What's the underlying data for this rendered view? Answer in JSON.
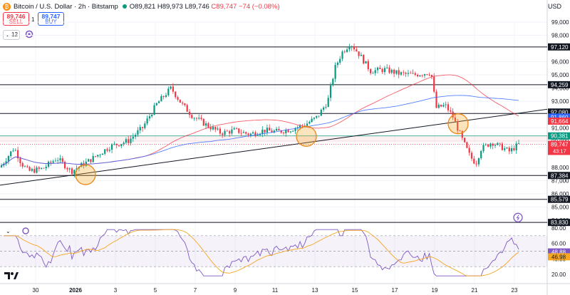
{
  "header": {
    "symbol": "Bitcoin / U.S. Dollar · 2h · Bitstamp",
    "open": "O89,821",
    "high": "H89,973",
    "low": "L89,746",
    "close": "C89,747",
    "change": "−74 (−0.08%)"
  },
  "trade": {
    "sell_price": "89,746",
    "sell_label": "SELL",
    "spread": "1",
    "buy_price": "89,747",
    "buy_label": "BUY"
  },
  "indicator_count": "12",
  "currency": "USD",
  "chart_data": {
    "type": "candlestick",
    "price_axis_ticks": [
      99000,
      98000,
      96000,
      95000,
      94000,
      93000,
      91000,
      90000,
      88000,
      87000,
      86000,
      85000,
      84000
    ],
    "price_labels": [
      {
        "value": 97120,
        "text": "97,120",
        "style": "level"
      },
      {
        "value": 94259,
        "text": "94,259",
        "style": "level"
      },
      {
        "value": 92080,
        "text": "92,080",
        "style": "level"
      },
      {
        "value": 91860,
        "text": "91,860",
        "style": "blue"
      },
      {
        "value": 91664,
        "text": "91,664",
        "style": "red"
      },
      {
        "value": 90381,
        "text": "90,381",
        "style": "green"
      },
      {
        "value": 89747,
        "text": "89,747",
        "style": "price"
      },
      {
        "value": 87384,
        "text": "87,384",
        "style": "level"
      },
      {
        "value": 85579,
        "text": "85,579",
        "style": "level"
      },
      {
        "value": 83830,
        "text": "83,830",
        "style": "level"
      }
    ],
    "countdown": "43:17",
    "horizontal_levels": [
      97120,
      94259,
      92080,
      87384,
      85579,
      83830
    ],
    "x_axis_labels": [
      "30",
      "2026",
      "3",
      "5",
      "7",
      "9",
      "11",
      "13",
      "15",
      "17",
      "19",
      "21",
      "23"
    ],
    "key_closes": [
      {
        "label": "30",
        "close": 88000
      },
      {
        "label": "2026",
        "close": 87700
      },
      {
        "label": "3",
        "close": 89500
      },
      {
        "label": "5",
        "close": 93800
      },
      {
        "label": "7",
        "close": 90900
      },
      {
        "label": "9",
        "close": 90600
      },
      {
        "label": "11",
        "close": 90700
      },
      {
        "label": "13",
        "close": 91500
      },
      {
        "label": "15",
        "close": 96800
      },
      {
        "label": "17",
        "close": 95200
      },
      {
        "label": "19",
        "close": 92900
      },
      {
        "label": "21",
        "close": 88300
      },
      {
        "label": "23",
        "close": 89747
      }
    ],
    "rsi": {
      "ticks": [
        80.0,
        60.0,
        40.0,
        20.0
      ],
      "value_labels": [
        "48.88",
        "46.98"
      ],
      "upper_band": 70,
      "lower_band": 30,
      "middle": 50
    },
    "colors": {
      "up": "#089981",
      "down": "#f23645",
      "ma_red": "#f23645",
      "ma_blue": "#2962ff",
      "rsi": "#7e57c2",
      "rsi_ma": "#f5a623"
    }
  }
}
